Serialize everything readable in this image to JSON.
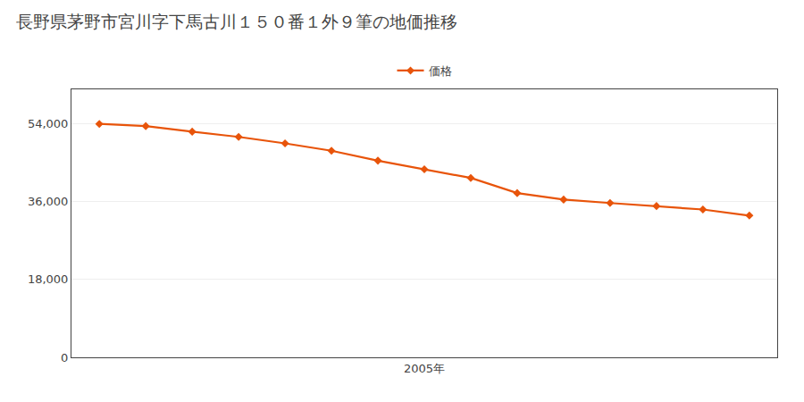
{
  "chart_data": {
    "type": "line",
    "title": "長野県茅野市宮川字下馬古川１５０番１外９筆の地価推移",
    "x": [
      1998,
      1999,
      2000,
      2001,
      2002,
      2003,
      2004,
      2005,
      2006,
      2007,
      2008,
      2009,
      2010,
      2011,
      2012
    ],
    "series": [
      {
        "name": "価格",
        "color": "#e8540a",
        "marker": "diamond",
        "values": [
          54000,
          53500,
          52200,
          51000,
          49500,
          47800,
          45500,
          43500,
          41500,
          38000,
          36500,
          35700,
          35000,
          34200,
          32800
        ]
      }
    ],
    "xlim": [
      1997.4,
      2012.6
    ],
    "xticks": [
      {
        "value": 2005,
        "label": "2005年"
      }
    ],
    "ylim": [
      0,
      62000
    ],
    "yticks": [
      0,
      {
        "value": 18000,
        "label": "18,000"
      },
      {
        "value": 36000,
        "label": "36,000"
      },
      {
        "value": 54000,
        "label": "54,000"
      }
    ],
    "grid": true,
    "legend": "top"
  }
}
